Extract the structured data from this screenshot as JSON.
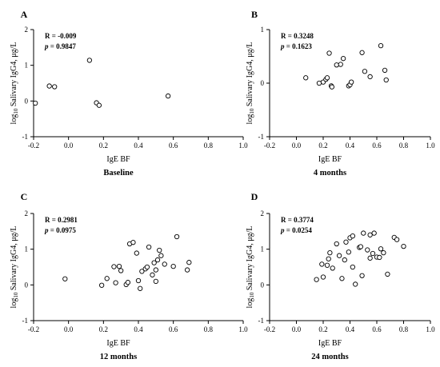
{
  "chart_data": [
    {
      "type": "scatter",
      "panel": "A",
      "xlabel": "IgE BF",
      "ylabel": "log10 Salivary IgG4,  μg/L",
      "caption": "Baseline",
      "stats": {
        "r": "R = -0.009",
        "p": "= 0.9847"
      },
      "xlim": [
        -0.2,
        1.0
      ],
      "ylim": [
        -1,
        2
      ],
      "xticks": [
        "-0.2",
        "0.0",
        "0.2",
        "0.4",
        "0.6",
        "0.8",
        "1.0"
      ],
      "yticks": [
        "-1",
        "0",
        "1",
        "2"
      ],
      "points": [
        [
          -0.19,
          -0.06
        ],
        [
          -0.11,
          0.42
        ],
        [
          -0.08,
          0.4
        ],
        [
          0.12,
          1.14
        ],
        [
          0.16,
          -0.05
        ],
        [
          0.175,
          -0.12
        ],
        [
          0.57,
          0.14
        ]
      ]
    },
    {
      "type": "scatter",
      "panel": "B",
      "xlabel": "IgE BF",
      "ylabel": "log10 Salivary IgG4,  μg/L",
      "caption": "4 months",
      "stats": {
        "r": "R = 0.3248",
        "p": "= 0.1623"
      },
      "xlim": [
        -0.2,
        1.0
      ],
      "ylim": [
        -1,
        1
      ],
      "xticks": [
        "-0.2",
        "0.0",
        "0.2",
        "0.4",
        "0.6",
        "0.8",
        "1.0"
      ],
      "yticks": [
        "-1",
        "0",
        "1"
      ],
      "points": [
        [
          0.07,
          0.1
        ],
        [
          0.17,
          0.0
        ],
        [
          0.2,
          0.02
        ],
        [
          0.22,
          0.07
        ],
        [
          0.23,
          0.1
        ],
        [
          0.245,
          0.56
        ],
        [
          0.26,
          -0.05
        ],
        [
          0.265,
          -0.07
        ],
        [
          0.3,
          0.34
        ],
        [
          0.33,
          0.35
        ],
        [
          0.35,
          0.46
        ],
        [
          0.39,
          -0.05
        ],
        [
          0.4,
          -0.03
        ],
        [
          0.41,
          0.02
        ],
        [
          0.49,
          0.57
        ],
        [
          0.51,
          0.22
        ],
        [
          0.55,
          0.12
        ],
        [
          0.63,
          0.7
        ],
        [
          0.66,
          0.24
        ],
        [
          0.67,
          0.06
        ]
      ]
    },
    {
      "type": "scatter",
      "panel": "C",
      "xlabel": "IgE BF",
      "ylabel": "log10 Salivary IgG4,  μg/L",
      "caption": "12 months",
      "stats": {
        "r": "R = 0.2981",
        "p": "= 0.0975"
      },
      "xlim": [
        -0.2,
        1.0
      ],
      "ylim": [
        -1,
        2
      ],
      "xticks": [
        "-0.2",
        "0.0",
        "0.2",
        "0.4",
        "0.6",
        "0.8",
        "1.0"
      ],
      "yticks": [
        "-1",
        "0",
        "1",
        "2"
      ],
      "points": [
        [
          -0.02,
          0.17
        ],
        [
          0.19,
          -0.01
        ],
        [
          0.22,
          0.18
        ],
        [
          0.26,
          0.51
        ],
        [
          0.27,
          0.06
        ],
        [
          0.29,
          0.52
        ],
        [
          0.3,
          0.4
        ],
        [
          0.33,
          0.01
        ],
        [
          0.34,
          0.07
        ],
        [
          0.35,
          1.15
        ],
        [
          0.37,
          1.19
        ],
        [
          0.39,
          0.89
        ],
        [
          0.4,
          0.12
        ],
        [
          0.41,
          -0.1
        ],
        [
          0.42,
          0.38
        ],
        [
          0.44,
          0.45
        ],
        [
          0.45,
          0.5
        ],
        [
          0.46,
          1.06
        ],
        [
          0.48,
          0.28
        ],
        [
          0.49,
          0.62
        ],
        [
          0.5,
          0.42
        ],
        [
          0.51,
          0.7
        ],
        [
          0.52,
          0.97
        ],
        [
          0.53,
          0.82
        ],
        [
          0.55,
          0.58
        ],
        [
          0.5,
          0.1
        ],
        [
          0.6,
          0.52
        ],
        [
          0.62,
          1.35
        ],
        [
          0.68,
          0.42
        ],
        [
          0.69,
          0.63
        ]
      ]
    },
    {
      "type": "scatter",
      "panel": "D",
      "xlabel": "IgE BF",
      "ylabel": "log10 Salivary IgG4,  μg/L",
      "caption": "24 months",
      "stats": {
        "r": "R = 0.3774",
        "p": "= 0.0254"
      },
      "xlim": [
        -0.2,
        1.0
      ],
      "ylim": [
        -1,
        2
      ],
      "xticks": [
        "-0.2",
        "0.0",
        "0.2",
        "0.4",
        "0.6",
        "0.8",
        "1.0"
      ],
      "yticks": [
        "-1",
        "0",
        "1",
        "2"
      ],
      "points": [
        [
          0.15,
          0.15
        ],
        [
          0.19,
          0.58
        ],
        [
          0.2,
          0.22
        ],
        [
          0.23,
          0.55
        ],
        [
          0.24,
          0.73
        ],
        [
          0.25,
          0.9
        ],
        [
          0.27,
          0.47
        ],
        [
          0.3,
          1.15
        ],
        [
          0.32,
          0.82
        ],
        [
          0.34,
          0.18
        ],
        [
          0.36,
          0.7
        ],
        [
          0.37,
          1.2
        ],
        [
          0.39,
          0.92
        ],
        [
          0.4,
          1.32
        ],
        [
          0.42,
          1.37
        ],
        [
          0.42,
          0.5
        ],
        [
          0.44,
          0.02
        ],
        [
          0.47,
          1.05
        ],
        [
          0.48,
          1.07
        ],
        [
          0.49,
          0.26
        ],
        [
          0.5,
          1.45
        ],
        [
          0.53,
          0.98
        ],
        [
          0.55,
          1.4
        ],
        [
          0.55,
          0.75
        ],
        [
          0.57,
          0.88
        ],
        [
          0.58,
          1.45
        ],
        [
          0.6,
          0.78
        ],
        [
          0.62,
          0.77
        ],
        [
          0.63,
          1.01
        ],
        [
          0.65,
          0.9
        ],
        [
          0.68,
          0.3
        ],
        [
          0.73,
          1.33
        ],
        [
          0.75,
          1.27
        ],
        [
          0.8,
          1.08
        ]
      ]
    }
  ]
}
